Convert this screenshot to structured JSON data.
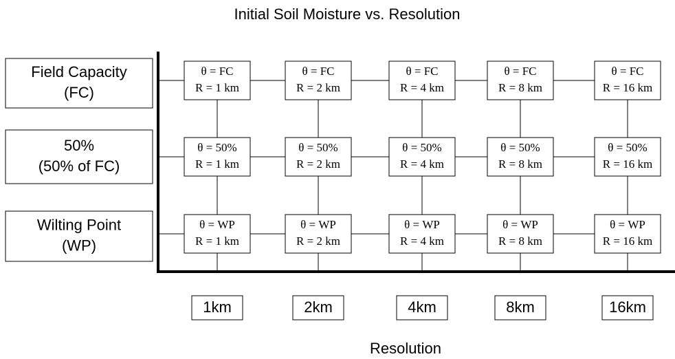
{
  "title": "Initial Soil Moisture vs. Resolution",
  "rows": [
    [
      "Field Capacity",
      "(FC)"
    ],
    [
      "50%",
      "(50% of FC)"
    ],
    [
      "Wilting Point",
      "(WP)"
    ]
  ],
  "columns": [
    "1km",
    "2km",
    "4km",
    "8km",
    "16km"
  ],
  "cells": [
    [
      [
        "θ = FC",
        "R = 1 km"
      ],
      [
        "θ = FC",
        "R = 2 km"
      ],
      [
        "θ = FC",
        "R = 4 km"
      ],
      [
        "θ = FC",
        "R = 8 km"
      ],
      [
        "θ = FC",
        "R = 16 km"
      ]
    ],
    [
      [
        "θ = 50%",
        "R = 1 km"
      ],
      [
        "θ = 50%",
        "R = 2 km"
      ],
      [
        "θ = 50%",
        "R = 4 km"
      ],
      [
        "θ = 50%",
        "R = 8 km"
      ],
      [
        "θ = 50%",
        "R = 16 km"
      ]
    ],
    [
      [
        "θ = WP",
        "R = 1 km"
      ],
      [
        "θ = WP",
        "R = 2 km"
      ],
      [
        "θ = WP",
        "R = 4 km"
      ],
      [
        "θ = WP",
        "R = 8 km"
      ],
      [
        "θ = WP",
        "R = 16 km"
      ]
    ]
  ],
  "x_axis_label": "Resolution"
}
